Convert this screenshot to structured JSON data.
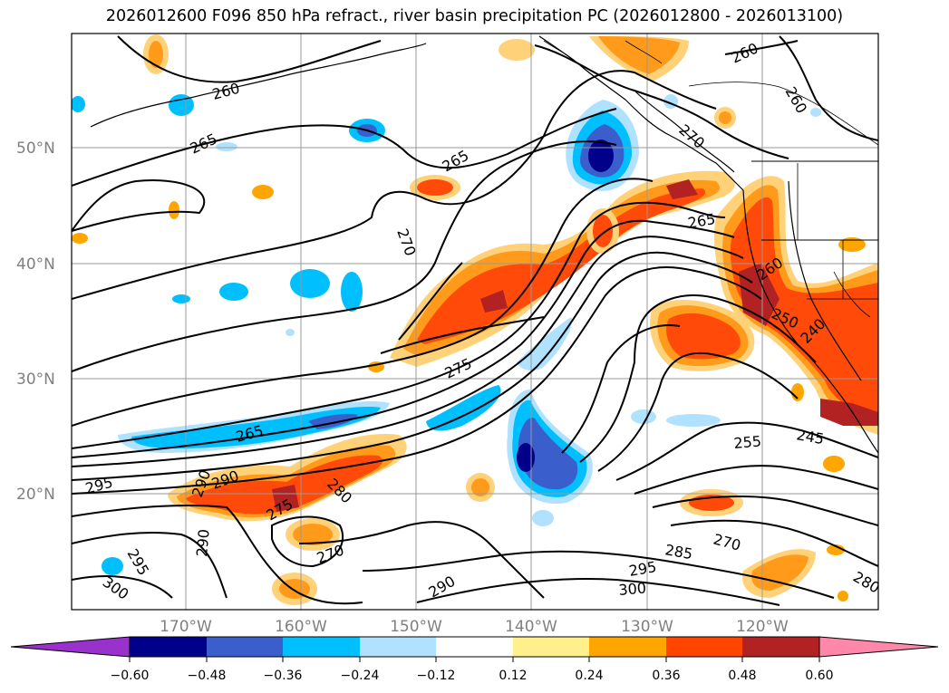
{
  "title": "2026012600 F096 850 hPa refract., river basin precipitation PC (2026012800 - 2026013100)",
  "lat_labels": [
    "50°N",
    "40°N",
    "30°N",
    "20°N"
  ],
  "lon_labels": [
    "170°W",
    "160°W",
    "150°W",
    "140°W",
    "130°W",
    "120°W"
  ],
  "contour_labels": [
    "260",
    "265",
    "265",
    "270",
    "270",
    "275",
    "265",
    "265",
    "260",
    "260",
    "260",
    "250",
    "240",
    "255",
    "245",
    "295",
    "295",
    "290",
    "290",
    "280",
    "275",
    "270",
    "290",
    "285",
    "270",
    "295",
    "300",
    "290",
    "300",
    "280"
  ],
  "colorbar": {
    "colors": [
      "#9932cc",
      "#00008b",
      "#3a5fcd",
      "#00bfff",
      "#b0e2ff",
      "#ffffff",
      "#fff08c",
      "#ffa500",
      "#ff4500",
      "#b22222",
      "#ff88aa"
    ],
    "tick_labels": [
      "−0.60",
      "−0.48",
      "−0.36",
      "−0.24",
      "−0.12",
      "0.12",
      "0.24",
      "0.36",
      "0.48",
      "0.60"
    ]
  },
  "colors": {
    "land_outline": "#000000",
    "grid": "#999999",
    "label_gray": "#808080"
  }
}
